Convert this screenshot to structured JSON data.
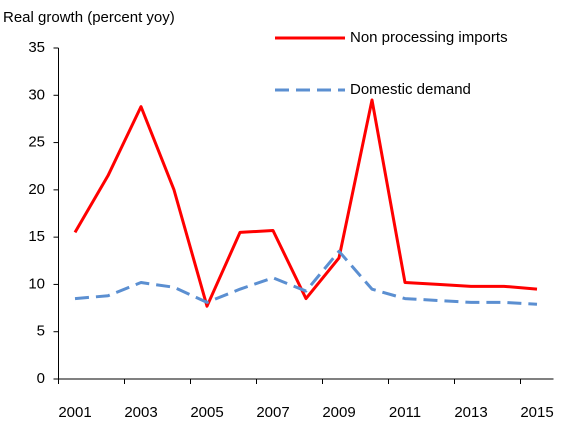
{
  "chart_data": {
    "type": "line",
    "y_label": "Real growth (percent yoy)",
    "categories": [
      "2001",
      null,
      "2003",
      null,
      "2005",
      null,
      "2007",
      null,
      "2009",
      null,
      "2011",
      null,
      "2013",
      null,
      "2015"
    ],
    "series": [
      {
        "name": "Non processing imports",
        "color": "#ff0000",
        "dash": false,
        "values": [
          15.5,
          21.5,
          28.8,
          20,
          7.7,
          15.5,
          15.7,
          8.5,
          12.8,
          29.5,
          10.2,
          10,
          9.8,
          9.8,
          9.5
        ]
      },
      {
        "name": "Domestic demand",
        "color": "#5b8fd1",
        "dash": true,
        "values": [
          8.5,
          8.8,
          10.2,
          9.7,
          8.1,
          9.5,
          10.7,
          9.3,
          13.5,
          9.5,
          8.5,
          8.3,
          8.1,
          8.1,
          7.9
        ]
      }
    ],
    "ylim": [
      0,
      35
    ],
    "yticks": [
      0,
      5,
      10,
      15,
      20,
      25,
      30,
      35
    ],
    "grid": false
  }
}
